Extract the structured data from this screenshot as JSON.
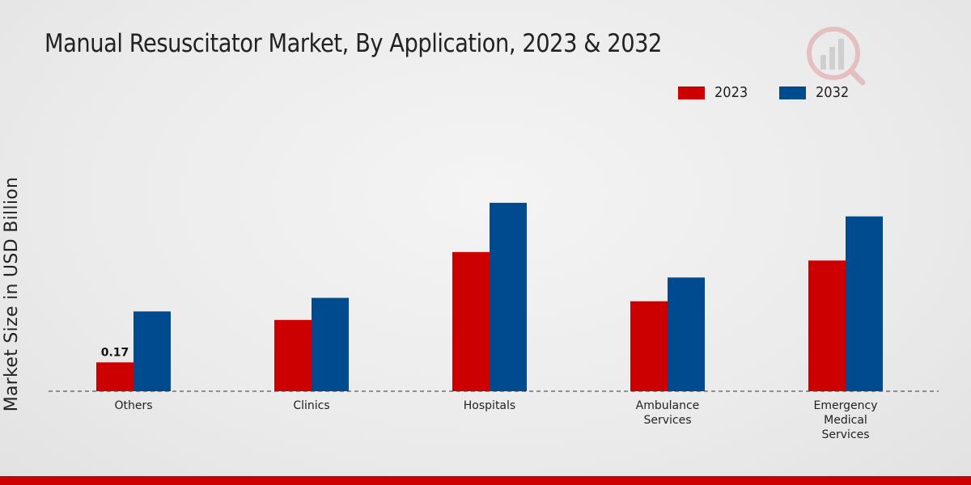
{
  "chart_data": {
    "type": "bar",
    "title": "Manual Resuscitator Market, By Application, 2023 & 2032",
    "xlabel": "",
    "ylabel": "Market Size in USD Billion",
    "categories": [
      [
        "Others"
      ],
      [
        "Clinics"
      ],
      [
        "Hospitals"
      ],
      [
        "Ambulance",
        "Services"
      ],
      [
        "Emergency",
        "Medical",
        "Services"
      ]
    ],
    "series": [
      {
        "name": "2023",
        "color": "#cc0000",
        "values": [
          0.17,
          0.42,
          0.82,
          0.53,
          0.77
        ]
      },
      {
        "name": "2032",
        "color": "#004a8f",
        "values": [
          0.47,
          0.55,
          1.11,
          0.67,
          1.03
        ]
      }
    ],
    "data_labels": [
      {
        "series": 0,
        "index": 0,
        "text": "0.17"
      }
    ],
    "ylim": [
      0,
      1.4
    ],
    "legend_position": "top-right",
    "grid": false
  },
  "colors": {
    "accent": "#cc0000"
  }
}
